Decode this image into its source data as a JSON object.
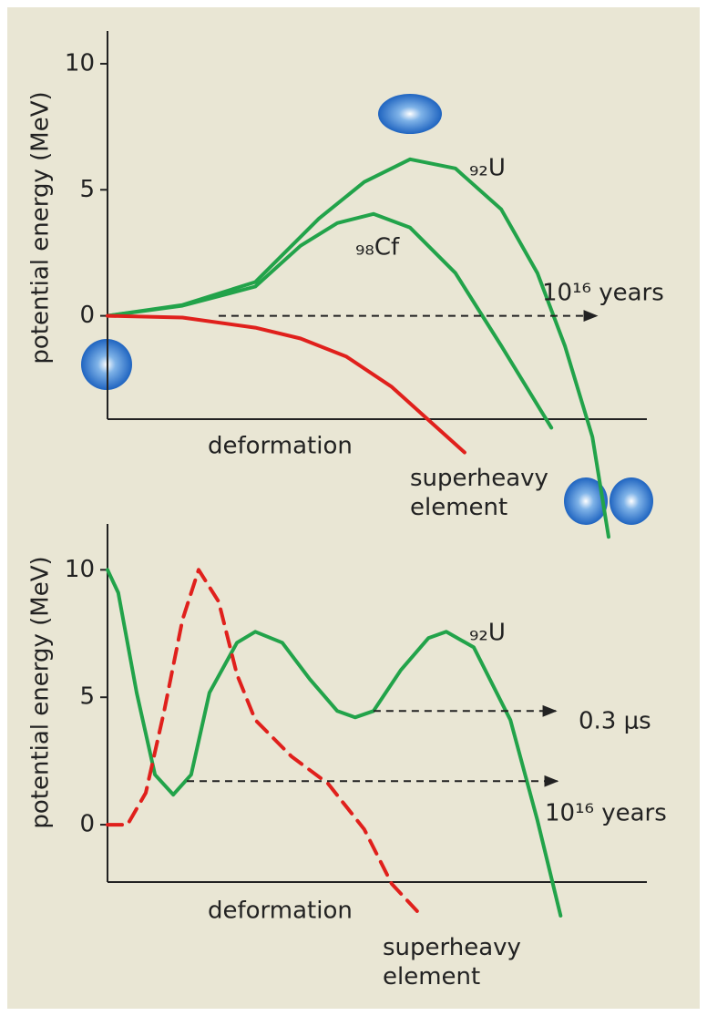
{
  "chart_data": [
    {
      "type": "line",
      "y_label": "potential energy (MeV)",
      "x_label": "deformation",
      "xlim": [
        0,
        10
      ],
      "ylim": [
        -4.1,
        11.3
      ],
      "yticks": [
        0,
        5,
        10
      ],
      "series": [
        {
          "name": "₉₂U",
          "color": "#22a34a",
          "x": [
            0,
            1.39,
            2.74,
            3.92,
            4.76,
            5.61,
            6.45,
            7.3,
            7.97,
            8.48,
            8.99,
            9.29
          ],
          "values": [
            0,
            0.43,
            1.34,
            3.86,
            5.31,
            6.21,
            5.85,
            4.22,
            1.7,
            -1.19,
            -4.8,
            -8.77
          ]
        },
        {
          "name": "₉₈Cf",
          "color": "#22a34a",
          "x": [
            0,
            1.39,
            2.74,
            3.58,
            4.26,
            4.93,
            5.61,
            6.45,
            7.3,
            8.23
          ],
          "values": [
            0,
            0.4,
            1.16,
            2.78,
            3.68,
            4.04,
            3.5,
            1.7,
            -1.19,
            -4.44
          ]
        },
        {
          "name": "superheavy element",
          "color": "#e0201c",
          "x": [
            0,
            1.39,
            2.74,
            3.58,
            4.43,
            5.27,
            6.11,
            6.62
          ],
          "values": [
            0,
            -0.07,
            -0.47,
            -0.9,
            -1.62,
            -2.82,
            -4.44,
            -5.42
          ]
        }
      ],
      "annotations": [
        {
          "text": "10¹⁶ years",
          "y": 0,
          "x": [
            2.06,
            9.07
          ]
        }
      ]
    },
    {
      "type": "line",
      "y_label": "potential energy (MeV)",
      "x_label": "deformation",
      "xlim": [
        0,
        10
      ],
      "ylim": [
        -2.25,
        11.8
      ],
      "yticks": [
        0,
        5,
        10
      ],
      "series": [
        {
          "name": "₉₂U",
          "color": "#22a34a",
          "x": [
            0,
            0.2,
            0.54,
            0.88,
            1.22,
            1.55,
            1.89,
            2.4,
            2.74,
            3.24,
            3.75,
            4.26,
            4.59,
            4.93,
            5.44,
            5.95,
            6.28,
            6.79,
            7.47,
            7.97,
            8.4
          ],
          "values": [
            10,
            9.1,
            5.18,
            1.96,
            1.18,
            1.96,
            5.18,
            7.14,
            7.57,
            7.14,
            5.71,
            4.46,
            4.21,
            4.46,
            6.07,
            7.32,
            7.57,
            6.96,
            4.11,
            0.18,
            -3.57
          ]
        },
        {
          "name": "superheavy element",
          "color": "#e0201c",
          "dashed": true,
          "x": [
            0,
            0.37,
            0.71,
            1.05,
            1.39,
            1.69,
            2.06,
            2.4,
            2.74,
            3.41,
            4.09,
            4.76,
            5.27,
            5.74
          ],
          "values": [
            0,
            0,
            1.25,
            4.46,
            8.04,
            10,
            8.75,
            5.89,
            4.11,
            2.68,
            1.61,
            -0.18,
            -2.32,
            -3.39
          ]
        }
      ],
      "annotations": [
        {
          "text": "0.3 μs",
          "y": 4.46,
          "x": [
            4.93,
            8.31
          ]
        },
        {
          "text": "10¹⁶ years",
          "y": 1.71,
          "x": [
            1.47,
            8.34
          ]
        }
      ]
    }
  ]
}
